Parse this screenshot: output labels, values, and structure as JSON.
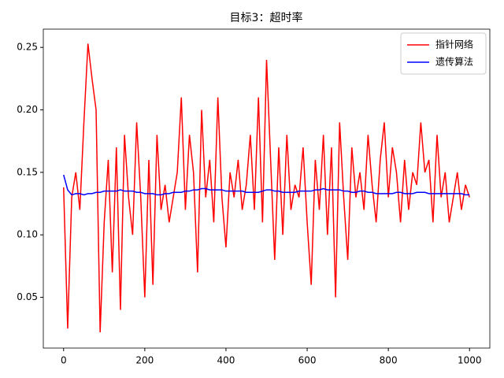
{
  "chart_data": {
    "type": "line",
    "title": "目标3：超时率",
    "x": [
      0,
      10,
      20,
      30,
      40,
      50,
      60,
      70,
      80,
      90,
      100,
      110,
      120,
      130,
      140,
      150,
      160,
      170,
      180,
      190,
      200,
      210,
      220,
      230,
      240,
      250,
      260,
      270,
      280,
      290,
      300,
      310,
      320,
      330,
      340,
      350,
      360,
      370,
      380,
      390,
      400,
      410,
      420,
      430,
      440,
      450,
      460,
      470,
      480,
      490,
      500,
      510,
      520,
      530,
      540,
      550,
      560,
      570,
      580,
      590,
      600,
      610,
      620,
      630,
      640,
      650,
      660,
      670,
      680,
      690,
      700,
      710,
      720,
      730,
      740,
      750,
      760,
      770,
      780,
      790,
      800,
      810,
      820,
      830,
      840,
      850,
      860,
      870,
      880,
      890,
      900,
      910,
      920,
      930,
      940,
      950,
      960,
      970,
      980,
      990,
      1000
    ],
    "series": [
      {
        "name": "指针网络",
        "color": "#ff0000",
        "values": [
          0.138,
          0.025,
          0.13,
          0.15,
          0.12,
          0.19,
          0.253,
          0.225,
          0.2,
          0.022,
          0.11,
          0.16,
          0.07,
          0.17,
          0.04,
          0.18,
          0.13,
          0.1,
          0.19,
          0.13,
          0.05,
          0.16,
          0.06,
          0.18,
          0.12,
          0.14,
          0.11,
          0.13,
          0.15,
          0.21,
          0.12,
          0.18,
          0.15,
          0.07,
          0.2,
          0.13,
          0.16,
          0.11,
          0.21,
          0.13,
          0.09,
          0.15,
          0.13,
          0.16,
          0.12,
          0.14,
          0.18,
          0.12,
          0.21,
          0.11,
          0.24,
          0.16,
          0.08,
          0.17,
          0.1,
          0.18,
          0.12,
          0.14,
          0.13,
          0.17,
          0.11,
          0.06,
          0.16,
          0.12,
          0.18,
          0.1,
          0.17,
          0.05,
          0.19,
          0.13,
          0.08,
          0.17,
          0.13,
          0.15,
          0.12,
          0.18,
          0.14,
          0.11,
          0.16,
          0.19,
          0.13,
          0.17,
          0.15,
          0.11,
          0.16,
          0.12,
          0.15,
          0.14,
          0.19,
          0.15,
          0.16,
          0.11,
          0.18,
          0.13,
          0.15,
          0.11,
          0.13,
          0.15,
          0.12,
          0.14,
          0.13
        ]
      },
      {
        "name": "遗传算法",
        "color": "#0000ff",
        "values": [
          0.148,
          0.136,
          0.132,
          0.133,
          0.133,
          0.132,
          0.133,
          0.133,
          0.134,
          0.134,
          0.135,
          0.135,
          0.135,
          0.135,
          0.136,
          0.135,
          0.135,
          0.135,
          0.134,
          0.134,
          0.133,
          0.133,
          0.133,
          0.132,
          0.132,
          0.133,
          0.133,
          0.134,
          0.134,
          0.134,
          0.135,
          0.135,
          0.136,
          0.136,
          0.137,
          0.137,
          0.136,
          0.136,
          0.136,
          0.136,
          0.135,
          0.135,
          0.135,
          0.135,
          0.135,
          0.134,
          0.134,
          0.134,
          0.134,
          0.135,
          0.136,
          0.136,
          0.135,
          0.135,
          0.134,
          0.134,
          0.134,
          0.134,
          0.135,
          0.135,
          0.135,
          0.135,
          0.136,
          0.136,
          0.137,
          0.136,
          0.136,
          0.136,
          0.136,
          0.135,
          0.135,
          0.134,
          0.134,
          0.135,
          0.135,
          0.134,
          0.134,
          0.133,
          0.133,
          0.133,
          0.133,
          0.133,
          0.134,
          0.134,
          0.133,
          0.133,
          0.133,
          0.134,
          0.134,
          0.134,
          0.133,
          0.133,
          0.133,
          0.133,
          0.133,
          0.133,
          0.133,
          0.133,
          0.133,
          0.132,
          0.132
        ]
      }
    ],
    "xlim": [
      -50,
      1050
    ],
    "xticks": [
      0,
      200,
      400,
      600,
      800,
      1000
    ],
    "ylim": [
      0.0094,
      0.2646
    ],
    "yticks": [
      0.05,
      {
        "value": 0.1,
        "label": "0.10"
      },
      0.15,
      {
        "value": 0.2,
        "label": "0.20"
      },
      0.25
    ],
    "grid": false,
    "legend": "upper right"
  }
}
